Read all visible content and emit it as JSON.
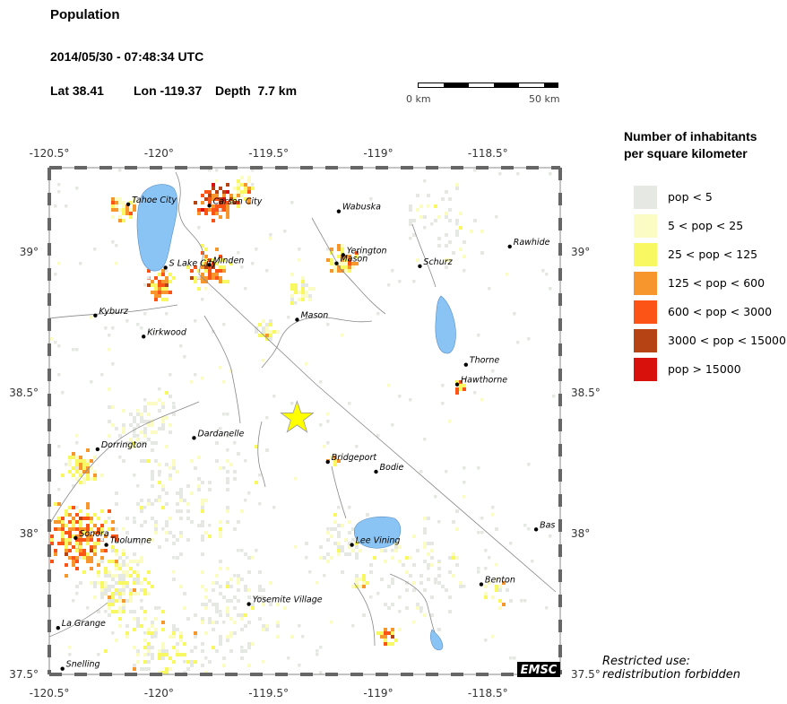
{
  "header": {
    "title": "Population",
    "datetime": "2014/05/30 - 07:48:34 UTC",
    "lat_label": "Lat 38.41",
    "lon_label": "Lon -119.37",
    "depth_label": "Depth  7.7 km"
  },
  "scalebar": {
    "left": "0 km",
    "right": "50 km"
  },
  "axes": {
    "lon_ticks": [
      {
        "value": -120.5,
        "label": "-120.5°"
      },
      {
        "value": -120.0,
        "label": "-120°"
      },
      {
        "value": -119.5,
        "label": "-119.5°"
      },
      {
        "value": -119.0,
        "label": "-119°"
      },
      {
        "value": -118.5,
        "label": "-118.5°"
      }
    ],
    "lat_ticks": [
      {
        "value": 39.0,
        "label": "39°"
      },
      {
        "value": 38.5,
        "label": "38.5°"
      },
      {
        "value": 38.0,
        "label": "38°"
      },
      {
        "value": 37.5,
        "label": "37.5°"
      }
    ],
    "lon_range": [
      -120.5,
      -118.17
    ],
    "lat_range": [
      37.5,
      39.3
    ]
  },
  "epicenter": {
    "lat": 38.41,
    "lon": -119.37,
    "color": "#ffff00"
  },
  "places": [
    {
      "name": "Tahoe City",
      "lon": -120.14,
      "lat": 39.17
    },
    {
      "name": "Carson City",
      "lon": -119.77,
      "lat": 39.165
    },
    {
      "name": "Wabuska",
      "lon": -119.18,
      "lat": 39.145
    },
    {
      "name": "Yerington",
      "lon": -119.16,
      "lat": 38.99
    },
    {
      "name": "Mason",
      "lon": -119.19,
      "lat": 38.96
    },
    {
      "name": "S Lake City",
      "lon": -119.97,
      "lat": 38.945
    },
    {
      "name": "Minden",
      "lon": -119.77,
      "lat": 38.955
    },
    {
      "name": "Schurz",
      "lon": -118.81,
      "lat": 38.95
    },
    {
      "name": "Rawhide",
      "lon": -118.4,
      "lat": 39.02
    },
    {
      "name": "Kyburz",
      "lon": -120.29,
      "lat": 38.775
    },
    {
      "name": "Mason",
      "lon": -119.37,
      "lat": 38.76
    },
    {
      "name": "Kirkwood",
      "lon": -120.07,
      "lat": 38.7
    },
    {
      "name": "Thorne",
      "lon": -118.6,
      "lat": 38.6
    },
    {
      "name": "Hawthorne",
      "lon": -118.64,
      "lat": 38.53
    },
    {
      "name": "Dorrington",
      "lon": -120.28,
      "lat": 38.3
    },
    {
      "name": "Dardanelle",
      "lon": -119.84,
      "lat": 38.34
    },
    {
      "name": "Bridgeport",
      "lon": -119.23,
      "lat": 38.255
    },
    {
      "name": "Bodie",
      "lon": -119.01,
      "lat": 38.22
    },
    {
      "name": "Bas",
      "lon": -118.28,
      "lat": 38.015
    },
    {
      "name": "Sonora",
      "lon": -120.38,
      "lat": 37.985
    },
    {
      "name": "Tuolumne",
      "lon": -120.24,
      "lat": 37.96
    },
    {
      "name": "Lee Vining",
      "lon": -119.12,
      "lat": 37.96
    },
    {
      "name": "Benton",
      "lon": -118.53,
      "lat": 37.82
    },
    {
      "name": "Yosemite Village",
      "lon": -119.59,
      "lat": 37.75
    },
    {
      "name": "La Grange",
      "lon": -120.46,
      "lat": 37.665
    },
    {
      "name": "Snelling",
      "lon": -120.44,
      "lat": 37.52
    }
  ],
  "legend": {
    "title_line1": "Number of inhabitants",
    "title_line2": "per square kilometer",
    "items": [
      {
        "label": "pop < 5",
        "color": "#e6e8e4"
      },
      {
        "label": "5 < pop < 25",
        "color": "#fbfbc4"
      },
      {
        "label": "25 < pop < 125",
        "color": "#f8f862"
      },
      {
        "label": "125 < pop < 600",
        "color": "#f8962e"
      },
      {
        "label": "600 < pop < 3000",
        "color": "#fb5416"
      },
      {
        "label": "3000 < pop < 15000",
        "color": "#b54313"
      },
      {
        "label": "pop > 15000",
        "color": "#d8110c"
      }
    ]
  },
  "logo": "EMSC",
  "restricted_line1": "Restricted use:",
  "restricted_line2": "redistribution forbidden",
  "colors": {
    "water": "#8ac4f4",
    "border": "#888888"
  }
}
